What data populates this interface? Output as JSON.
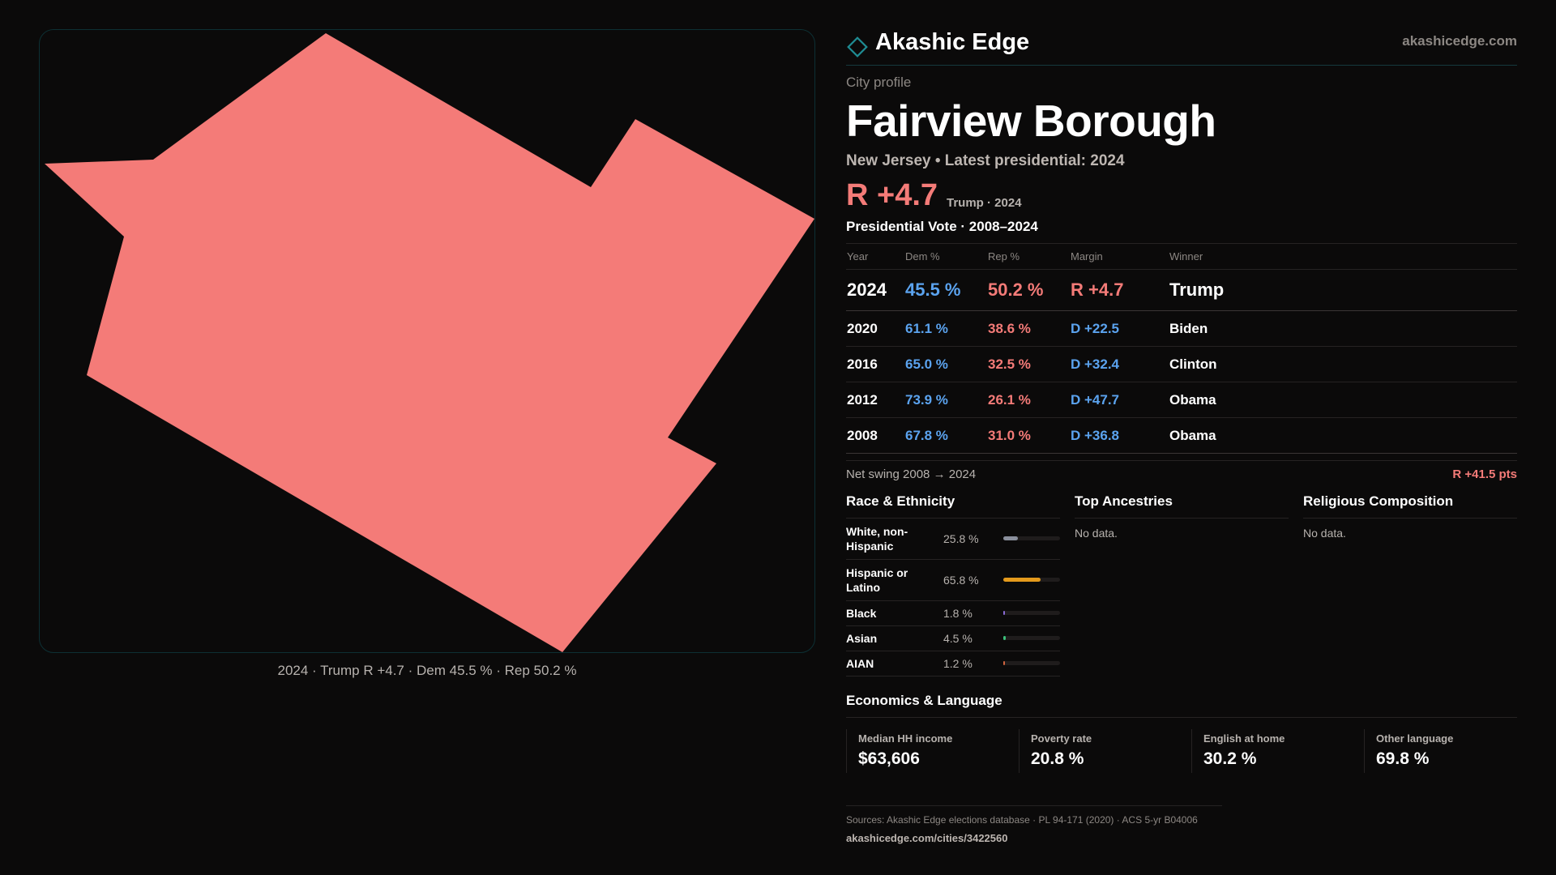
{
  "brand": {
    "name": "Akashic Edge",
    "domain": "akashicedge.com",
    "icon": "diamond-outline-icon",
    "accent": "#1f8c93"
  },
  "profile": {
    "eyebrow": "City profile",
    "city": "Fairview Borough",
    "subtitle": "New Jersey • Latest presidential: 2024",
    "headline_margin": "R +4.7",
    "headline_winner": "Trump · 2024"
  },
  "map": {
    "fill": "#f47b78",
    "caption": "2024 · Trump R +4.7 · Dem 45.5 % · Rep 50.2 %"
  },
  "vote_table": {
    "title": "Presidential Vote · 2008–2024",
    "headers": {
      "year": "Year",
      "dem": "Dem %",
      "rep": "Rep %",
      "margin": "Margin",
      "winner": "Winner"
    },
    "rows": [
      {
        "year": "2024",
        "dem": "45.5 %",
        "rep": "50.2 %",
        "margin": "R +4.7",
        "party": "rep",
        "winner": "Trump"
      },
      {
        "year": "2020",
        "dem": "61.1 %",
        "rep": "38.6 %",
        "margin": "D +22.5",
        "party": "dem",
        "winner": "Biden"
      },
      {
        "year": "2016",
        "dem": "65.0 %",
        "rep": "32.5 %",
        "margin": "D +32.4",
        "party": "dem",
        "winner": "Clinton"
      },
      {
        "year": "2012",
        "dem": "73.9 %",
        "rep": "26.1 %",
        "margin": "D +47.7",
        "party": "dem",
        "winner": "Obama"
      },
      {
        "year": "2008",
        "dem": "67.8 %",
        "rep": "31.0 %",
        "margin": "D +36.8",
        "party": "dem",
        "winner": "Obama"
      }
    ]
  },
  "swing": {
    "label": "Net swing 2008 → 2024",
    "value": "R +41.5 pts"
  },
  "race": {
    "title": "Race & Ethnicity",
    "rows": [
      {
        "label": "White, non-Hispanic",
        "pct": "25.8 %",
        "value": 25.8,
        "color": "#8a8f9c"
      },
      {
        "label": "Hispanic or Latino",
        "pct": "65.8 %",
        "value": 65.8,
        "color": "#e49a1c"
      },
      {
        "label": "Black",
        "pct": "1.8 %",
        "value": 1.8,
        "color": "#8a6bd6"
      },
      {
        "label": "Asian",
        "pct": "4.5 %",
        "value": 4.5,
        "color": "#3bbf7a"
      },
      {
        "label": "AIAN",
        "pct": "1.2 %",
        "value": 1.2,
        "color": "#d0643e"
      }
    ]
  },
  "ancestries": {
    "title": "Top Ancestries",
    "empty": "No data."
  },
  "religion": {
    "title": "Religious Composition",
    "empty": "No data."
  },
  "economics": {
    "title": "Economics & Language",
    "stats": [
      {
        "label": "Median HH income",
        "value": "$63,606"
      },
      {
        "label": "Poverty rate",
        "value": "20.8 %"
      },
      {
        "label": "English at home",
        "value": "30.2 %"
      },
      {
        "label": "Other language",
        "value": "69.8 %"
      }
    ]
  },
  "footer": {
    "sources": "Sources: Akashic Edge elections database · PL 94-171 (2020) · ACS 5-yr B04006",
    "permalink": "akashicedge.com/cities/3422560"
  }
}
